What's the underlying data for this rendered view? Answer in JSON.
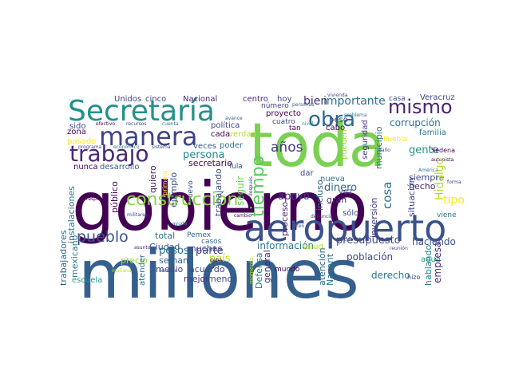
{
  "words": [
    {
      "id": "gobierno",
      "text": "gobierno",
      "color": "#440154"
    },
    {
      "id": "millones",
      "text": "millones",
      "color": "#35608d"
    },
    {
      "id": "toda",
      "text": "toda",
      "color": "#7ad151"
    },
    {
      "id": "aeropuerto",
      "text": "aeropuerto",
      "color": "#3b528b"
    },
    {
      "id": "secretaria",
      "text": "Secretaría",
      "color": "#21918c"
    },
    {
      "id": "manera",
      "text": "manera",
      "color": "#414487"
    },
    {
      "id": "trabajo",
      "text": "trabajo",
      "color": "#482878"
    },
    {
      "id": "obra",
      "text": "obra",
      "color": "#31688e"
    },
    {
      "id": "mismo",
      "text": "mismo",
      "color": "#482475"
    },
    {
      "id": "construccion",
      "text": "construcción",
      "color": "#86d549"
    },
    {
      "id": "tiempo",
      "text": "tiempo",
      "color": "#5ec962"
    },
    {
      "id": "pueblo",
      "text": "pueblo",
      "color": "#3b528b"
    },
    {
      "id": "anos",
      "text": "años",
      "color": "#443983"
    },
    {
      "id": "importante",
      "text": "importante",
      "color": "#2c728e"
    },
    {
      "id": "bien",
      "text": "bien",
      "color": "#472d7b"
    },
    {
      "id": "persona",
      "text": "persona",
      "color": "#25858e"
    },
    {
      "id": "presupuesto",
      "text": "presupuesto",
      "color": "#3e4989"
    },
    {
      "id": "informacion",
      "text": "información",
      "color": "#2a788e"
    },
    {
      "id": "apoyo",
      "text": "apoyo",
      "color": "#443983"
    },
    {
      "id": "cosa",
      "text": "cosa",
      "color": "#2c728e"
    },
    {
      "id": "dinero",
      "text": "dinero",
      "color": "#31688e"
    },
    {
      "id": "gente",
      "text": "gente",
      "color": "#21918c"
    },
    {
      "id": "hidalgo",
      "text": "Hidalgo",
      "color": "#b5de2b"
    },
    {
      "id": "tipo",
      "text": "tipo",
      "color": "#fde725"
    },
    {
      "id": "empresa",
      "text": "empresa",
      "color": "#482878"
    },
    {
      "id": "hablando",
      "text": "hablando",
      "color": "#26828e"
    },
    {
      "id": "haciendo",
      "text": "haciendo",
      "color": "#3b528b"
    },
    {
      "id": "agua",
      "text": "agua",
      "color": "#1fa187"
    },
    {
      "id": "derecho",
      "text": "derecho",
      "color": "#2a788e"
    },
    {
      "id": "poblacion",
      "text": "población",
      "color": "#3e4989"
    },
    {
      "id": "atencion",
      "text": "atención",
      "color": "#31688e"
    },
    {
      "id": "parte",
      "text": "parte",
      "color": "#414487"
    },
    {
      "id": "pais",
      "text": "país",
      "color": "#b5de2b"
    },
    {
      "id": "pesos",
      "text": "pesos",
      "color": "#2a788e"
    },
    {
      "id": "semana",
      "text": "semana",
      "color": "#355f8d"
    },
    {
      "id": "precio",
      "text": "precio",
      "color": "#a0da39"
    },
    {
      "id": "total",
      "text": "total",
      "color": "#2c728e"
    },
    {
      "id": "medio",
      "text": "medio",
      "color": "#3e4989"
    },
    {
      "id": "mejor",
      "text": "mejor",
      "color": "#443983"
    },
    {
      "id": "ciudad",
      "text": "Ciudad",
      "color": "#3b528b"
    },
    {
      "id": "muchas",
      "text": "muchas",
      "color": "#414487"
    },
    {
      "id": "acuerdo",
      "text": "acuerdo",
      "color": "#3e4989"
    },
    {
      "id": "pemex",
      "text": "Pemex",
      "color": "#31688e"
    },
    {
      "id": "casos",
      "text": "casos",
      "color": "#31688e"
    },
    {
      "id": "menos",
      "text": "menos",
      "color": "#3e4989"
    },
    {
      "id": "defensa",
      "text": "Defensa",
      "color": "#2a788e"
    },
    {
      "id": "general",
      "text": "general",
      "color": "#472d7b"
    },
    {
      "id": "secretario",
      "text": "secretario",
      "color": "#440154"
    },
    {
      "id": "tula",
      "text": "Tula",
      "color": "#3b528b"
    },
    {
      "id": "seguir",
      "text": "seguir",
      "color": "#6ece58"
    },
    {
      "id": "trabajando",
      "text": "trabajando",
      "color": "#3e4989"
    },
    {
      "id": "proceso",
      "text": "proceso",
      "color": "#482475"
    },
    {
      "id": "incluso",
      "text": "incluso",
      "color": "#31688e"
    },
    {
      "id": "gran",
      "text": "gran",
      "color": "#472d7b"
    },
    {
      "id": "vez",
      "text": "vez",
      "color": "#414487"
    },
    {
      "id": "nueva",
      "text": "nueva",
      "color": "#2c728e"
    },
    {
      "id": "dar",
      "text": "dar",
      "color": "#3e4989"
    },
    {
      "id": "solo",
      "text": "sólo",
      "color": "#3e4989"
    },
    {
      "id": "salud",
      "text": "salud",
      "color": "#b5de2b"
    },
    {
      "id": "nayarit",
      "text": "Nayarit",
      "color": "#2c728e"
    },
    {
      "id": "situacion",
      "text": "situación",
      "color": "#3e4989"
    },
    {
      "id": "inversion",
      "text": "inversión",
      "color": "#443983"
    },
    {
      "id": "hecho",
      "text": "hecho",
      "color": "#482878"
    },
    {
      "id": "siempre",
      "text": "siempre",
      "color": "#3e4989"
    },
    {
      "id": "sedena",
      "text": "Sedena",
      "color": "#440154"
    },
    {
      "id": "familia",
      "text": "familia",
      "color": "#2a788e"
    },
    {
      "id": "corrupcion",
      "text": "corrupción",
      "color": "#2c728e"
    },
    {
      "id": "veracruz",
      "text": "Veracruz",
      "color": "#414487"
    },
    {
      "id": "municipio",
      "text": "municipio",
      "color": "#2a788e"
    },
    {
      "id": "seguridad",
      "text": "seguridad",
      "color": "#443983"
    },
    {
      "id": "pueden",
      "text": "pueden",
      "color": "#a0da39"
    },
    {
      "id": "cabo",
      "text": "cabo",
      "color": "#440154"
    },
    {
      "id": "peso",
      "text": "peso",
      "color": "#3e4989"
    },
    {
      "id": "proyecto",
      "text": "proyecto",
      "color": "#440154"
    },
    {
      "id": "numero",
      "text": "número",
      "color": "#414487"
    },
    {
      "id": "centro",
      "text": "centro",
      "color": "#482878"
    },
    {
      "id": "hoy",
      "text": "hoy",
      "color": "#414487"
    },
    {
      "id": "cuatro",
      "text": "cuatro",
      "color": "#3e4989"
    },
    {
      "id": "tan",
      "text": "tan",
      "color": "#440154"
    },
    {
      "id": "casa",
      "text": "casa",
      "color": "#3e4989"
    },
    {
      "id": "nacional",
      "text": "Nacional",
      "color": "#482878"
    },
    {
      "id": "unidos",
      "text": "Unidos",
      "color": "#414487"
    },
    {
      "id": "cinco",
      "text": "cinco",
      "color": "#414487"
    },
    {
      "id": "politica",
      "text": "política",
      "color": "#3e4989"
    },
    {
      "id": "cada",
      "text": "cada",
      "color": "#440154"
    },
    {
      "id": "verdad",
      "text": "verdad",
      "color": "#b5de2b"
    },
    {
      "id": "poder",
      "text": "poder",
      "color": "#2c728e"
    },
    {
      "id": "veces",
      "text": "veces",
      "color": "#355f8d"
    },
    {
      "id": "sido",
      "text": "sido",
      "color": "#3e4989"
    },
    {
      "id": "zona",
      "text": "zona",
      "color": "#440154"
    },
    {
      "id": "pasado",
      "text": "pasado",
      "color": "#fde725"
    },
    {
      "id": "nunca",
      "text": "nunca",
      "color": "#440154"
    },
    {
      "id": "desarrollo",
      "text": "desarrollo",
      "color": "#35608d"
    },
    {
      "id": "instalaciones",
      "text": "instalaciones",
      "color": "#2a788e"
    },
    {
      "id": "trabajadores",
      "text": "trabajadores",
      "color": "#31688e"
    },
    {
      "id": "mexicano",
      "text": "mexicano",
      "color": "#2a788e"
    },
    {
      "id": "escuela",
      "text": "escuela",
      "color": "#1f9e89"
    },
    {
      "id": "ejemplo",
      "text": "ejemplo",
      "color": "#3e4989"
    },
    {
      "id": "quiero",
      "text": "quiero",
      "color": "#482475"
    },
    {
      "id": "publico",
      "text": "público",
      "color": "#440154"
    },
    {
      "id": "atender",
      "text": "atender",
      "color": "#2c728e"
    },
    {
      "id": "nuevo",
      "text": "nuevo",
      "color": "#3e4989"
    },
    {
      "id": "mundo",
      "text": "mundo",
      "color": "#440154"
    },
    {
      "id": "puebla",
      "text": "Puebla",
      "color": "#fde725"
    },
    {
      "id": "viene",
      "text": "viene",
      "color": "#2a788e"
    },
    {
      "id": "hizo",
      "text": "hizo",
      "color": "#3e4989"
    },
    {
      "id": "efectivo",
      "text": "efectivo",
      "color": "#440154"
    },
    {
      "id": "recursos",
      "text": "recursos",
      "color": "#3e4989"
    },
    {
      "id": "cuenta",
      "text": "cuenta",
      "color": "#2c728e"
    },
    {
      "id": "avance",
      "text": "avance",
      "color": "#31688e"
    },
    {
      "id": "personas",
      "text": "personas",
      "color": "#35608d"
    },
    {
      "id": "vivienda",
      "text": "vivienda",
      "color": "#3e4989"
    },
    {
      "id": "problema",
      "text": "problema",
      "color": "#2a788e"
    },
    {
      "id": "autopista",
      "text": "autopista",
      "color": "#440154"
    },
    {
      "id": "nivel",
      "text": "nivel",
      "color": "#21918c"
    },
    {
      "id": "programa",
      "text": "programa",
      "color": "#3e4989"
    },
    {
      "id": "economico",
      "text": "económico",
      "color": "#2c728e"
    },
    {
      "id": "sistema",
      "text": "sistema",
      "color": "#3e4989"
    },
    {
      "id": "dano",
      "text": "daño",
      "color": "#443983"
    },
    {
      "id": "respeto",
      "text": "respeto",
      "color": "#440154"
    },
    {
      "id": "militares",
      "text": "militares",
      "color": "#3e4989"
    },
    {
      "id": "ayuda",
      "text": "ayuda",
      "color": "#2a788e"
    },
    {
      "id": "cambio",
      "text": "cambio",
      "color": "#440154"
    },
    {
      "id": "denuncia",
      "text": "denuncia",
      "color": "#3e4989"
    },
    {
      "id": "asunto",
      "text": "asunto",
      "color": "#482475"
    },
    {
      "id": "partido",
      "text": "partido",
      "color": "#3e4989"
    },
    {
      "id": "reunion",
      "text": "reunión",
      "color": "#414487"
    },
    {
      "id": "manana",
      "text": "mañana",
      "color": "#b5de2b"
    },
    {
      "id": "servicio",
      "text": "servicio",
      "color": "#3e4989"
    },
    {
      "id": "momento",
      "text": "momento",
      "color": "#b5de2b"
    },
    {
      "id": "debe",
      "text": "debe",
      "color": "#440154"
    },
    {
      "id": "creo",
      "text": "creo",
      "color": "#3e4989"
    },
    {
      "id": "primero",
      "text": "primero",
      "color": "#fde725"
    },
    {
      "id": "despues",
      "text": "después",
      "color": "#414487"
    },
    {
      "id": "america",
      "text": "América",
      "color": "#2c728e"
    },
    {
      "id": "forma",
      "text": "forma",
      "color": "#3e4989"
    }
  ]
}
